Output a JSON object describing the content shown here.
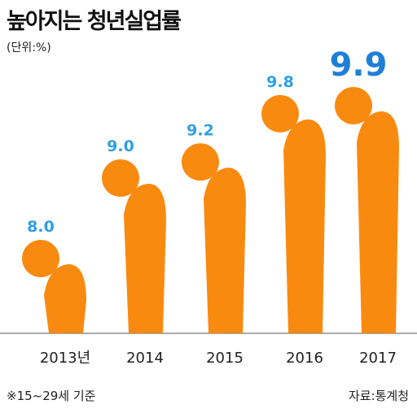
{
  "title": "높아지는 청년실업률",
  "unit": "(단위:%)",
  "note": "※15~29세 기준",
  "source": "자료:통계청",
  "colors": {
    "figure": "#f98a10",
    "label": "#2e9fe6",
    "highlight": "#1f7fd6",
    "axis": "#555555"
  },
  "chart_data": {
    "type": "bar",
    "categories": [
      "2013년",
      "2014",
      "2015",
      "2016",
      "2017"
    ],
    "values": [
      8.0,
      9.0,
      9.2,
      9.8,
      9.9
    ],
    "value_labels": [
      "8.0",
      "9.0",
      "9.2",
      "9.8",
      "9.9"
    ],
    "title": "높아지는 청년실업률",
    "ylabel": "(단위:%)",
    "highlight_index": 4
  }
}
